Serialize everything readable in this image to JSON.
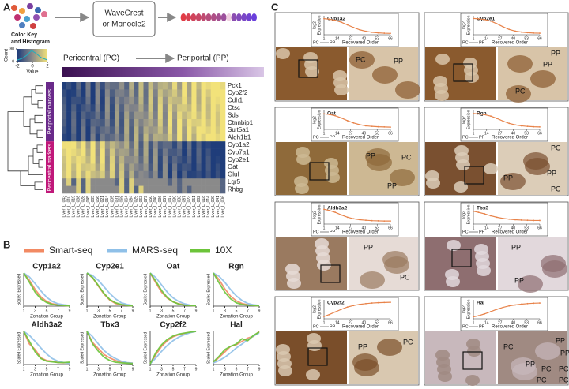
{
  "panel_a": {
    "letter": "A",
    "method": [
      "WaveCrest",
      "or Monocle2"
    ],
    "color_key": {
      "title": [
        "Color Key",
        "and Histogram"
      ],
      "count_label": "Count",
      "count_ticks": [
        0,
        80
      ],
      "value_label": "Value",
      "value_ticks": [
        -2,
        0,
        2
      ]
    },
    "axis_start": "Pericentral (PC)",
    "axis_end": "Periportal (PP)",
    "groups": [
      "Periportal markers",
      "Pericentral markers"
    ],
    "genes": [
      "Pck1",
      "Cyp2f2",
      "Cdh1",
      "Ctsc",
      "Sds",
      "Ctnnbip1",
      "Sult5a1",
      "Aldh1b1",
      "Cyp1a2",
      "Cyp7a1",
      "Cyp2e1",
      "Oat",
      "Glul",
      "Lgr5",
      "Rhbg"
    ],
    "cells": [
      "Liver_L_043",
      "Liver_L_010",
      "Liver_L_019",
      "Liver_L_038",
      "Liver_L_028",
      "Liver_L_045",
      "Liver_L_065",
      "Liver_L_056",
      "Liver_L_021",
      "Liver_L_054",
      "Liver_L_005",
      "Liver_L_031",
      "Liver_L_068",
      "Liver_L_064",
      "Liver_L_084",
      "Liver_L_025",
      "Liver_L_063",
      "Liver_L_079",
      "Liver_L_050",
      "Liver_L_040",
      "Liver_L_036",
      "Liver_L_057",
      "Liver_L_047",
      "Liver_L_030",
      "Liver_L_033",
      "Liver_L_087",
      "Liver_L_023",
      "Liver_L_051",
      "Liver_L_062",
      "Liver_L_018",
      "Liver_L_014",
      "Liver_L_009",
      "Liver_L_041",
      "Liver_L_006"
    ]
  },
  "panel_b": {
    "letter": "B",
    "x_label": "Zonation Group",
    "y_label": "Scaled Expressed",
    "legend": [
      {
        "name": "Smart-seq",
        "color": "#f28a63"
      },
      {
        "name": "MARS-seq",
        "color": "#8fc0e8"
      },
      {
        "name": "10X",
        "color": "#6cc43a"
      }
    ],
    "x": [
      1,
      2,
      3,
      4,
      5,
      6,
      7,
      8,
      9
    ],
    "xticks": [
      1,
      3,
      5,
      7,
      9
    ],
    "xlim": [
      1,
      9
    ],
    "ylim": [
      0,
      1
    ],
    "charts": [
      {
        "type": "line",
        "title": "Cyp1a2",
        "series": [
          [
            1,
            0.78,
            0.5,
            0.28,
            0.14,
            0.07,
            0.04,
            0.02,
            0.01
          ],
          [
            1,
            0.88,
            0.68,
            0.46,
            0.27,
            0.14,
            0.07,
            0.04,
            0.02
          ],
          [
            1,
            0.72,
            0.42,
            0.22,
            0.11,
            0.05,
            0.03,
            0.02,
            0.01
          ]
        ]
      },
      {
        "type": "line",
        "title": "Cyp2e1",
        "series": [
          [
            1,
            0.85,
            0.6,
            0.36,
            0.18,
            0.08,
            0.04,
            0.02,
            0.01
          ],
          [
            1,
            0.92,
            0.78,
            0.58,
            0.38,
            0.22,
            0.1,
            0.05,
            0.02
          ],
          [
            1,
            0.86,
            0.62,
            0.38,
            0.2,
            0.1,
            0.05,
            0.02,
            0.01
          ]
        ]
      },
      {
        "type": "line",
        "title": "Oat",
        "series": [
          [
            1,
            0.7,
            0.42,
            0.24,
            0.13,
            0.07,
            0.04,
            0.02,
            0.01
          ],
          [
            1,
            0.86,
            0.64,
            0.42,
            0.25,
            0.14,
            0.07,
            0.03,
            0.02
          ],
          [
            1,
            0.75,
            0.47,
            0.26,
            0.13,
            0.06,
            0.03,
            0.02,
            0.01
          ]
        ]
      },
      {
        "type": "line",
        "title": "Rgn",
        "series": [
          [
            1,
            0.8,
            0.52,
            0.3,
            0.16,
            0.08,
            0.04,
            0.02,
            0.01
          ],
          [
            1,
            0.9,
            0.72,
            0.5,
            0.31,
            0.17,
            0.08,
            0.04,
            0.02
          ],
          [
            1,
            0.7,
            0.42,
            0.22,
            0.1,
            0.05,
            0.03,
            0.02,
            0.01
          ]
        ]
      },
      {
        "type": "line",
        "title": "Aldh3a2",
        "series": [
          [
            1,
            0.62,
            0.45,
            0.2,
            0.12,
            0.1,
            0.06,
            0.05,
            0.06
          ],
          [
            1,
            0.88,
            0.7,
            0.5,
            0.32,
            0.18,
            0.1,
            0.06,
            0.04
          ],
          [
            1,
            0.7,
            0.38,
            0.18,
            0.1,
            0.08,
            0.06,
            0.06,
            0.07
          ]
        ]
      },
      {
        "type": "line",
        "title": "Tbx3",
        "series": [
          [
            1,
            0.66,
            0.48,
            0.3,
            0.2,
            0.12,
            0.07,
            0.05,
            0.04
          ],
          [
            1,
            0.84,
            0.62,
            0.42,
            0.28,
            0.18,
            0.1,
            0.06,
            0.04
          ],
          [
            1,
            0.62,
            0.4,
            0.22,
            0.12,
            0.07,
            0.05,
            0.04,
            0.03
          ]
        ]
      },
      {
        "type": "line",
        "title": "Cyp2f2",
        "series": [
          [
            0.02,
            0.3,
            0.55,
            0.72,
            0.84,
            0.9,
            0.94,
            0.97,
            1
          ],
          [
            0.02,
            0.2,
            0.4,
            0.58,
            0.72,
            0.83,
            0.9,
            0.96,
            1
          ],
          [
            0.02,
            0.36,
            0.6,
            0.76,
            0.86,
            0.92,
            0.95,
            0.98,
            1
          ]
        ]
      },
      {
        "type": "line",
        "title": "Hal",
        "series": [
          [
            0.05,
            0.22,
            0.38,
            0.55,
            0.6,
            0.7,
            0.8,
            0.85,
            1
          ],
          [
            0.05,
            0.12,
            0.22,
            0.35,
            0.5,
            0.62,
            0.75,
            0.86,
            0.95
          ],
          [
            0.08,
            0.25,
            0.45,
            0.55,
            0.62,
            0.78,
            0.72,
            0.88,
            0.98
          ]
        ]
      }
    ]
  },
  "panel_c": {
    "letter": "C",
    "y_label": [
      "log2",
      "Expression"
    ],
    "x_label": "Recovered Order",
    "start": "PC",
    "end": "PP",
    "x": [
      1,
      6,
      12,
      18,
      24,
      30,
      36,
      42,
      48,
      54,
      60,
      66
    ],
    "xticks": [
      1,
      14,
      27,
      40,
      53,
      66
    ],
    "xlim": [
      1,
      66
    ],
    "ylim": [
      0,
      10
    ],
    "color": "#e8834a",
    "panels": [
      {
        "gene": "Cyp1a2",
        "values": [
          8.5,
          8.2,
          7.6,
          6.6,
          5.2,
          3.8,
          2.6,
          1.8,
          1.3,
          1,
          0.8,
          0.7
        ],
        "image_labels": [
          "PC",
          "PP"
        ]
      },
      {
        "gene": "Cyp2e1",
        "values": [
          8.6,
          8.4,
          8,
          7.2,
          5.8,
          4.2,
          2.8,
          1.9,
          1.4,
          1.1,
          0.9,
          0.8
        ],
        "image_labels": [
          "PP",
          "PP",
          "PC"
        ]
      },
      {
        "gene": "Oat",
        "values": [
          8.2,
          7.9,
          7.2,
          6,
          4.6,
          3.4,
          2.5,
          1.9,
          1.6,
          1.4,
          1.3,
          1.2
        ],
        "image_labels": [
          "PC",
          "PP",
          "PP"
        ]
      },
      {
        "gene": "Rgn",
        "values": [
          8.4,
          8.2,
          7.8,
          7,
          5.8,
          4.4,
          3.2,
          2.4,
          1.9,
          1.6,
          1.4,
          1.3
        ],
        "image_labels": [
          "PC",
          "PP",
          "PP",
          "PC"
        ]
      },
      {
        "gene": "Aldh3a2",
        "values": [
          7.8,
          7.2,
          6.2,
          4.8,
          3.6,
          2.8,
          2.3,
          2,
          1.8,
          1.7,
          1.6,
          1.6
        ],
        "image_labels": [
          "PP",
          "PC"
        ]
      },
      {
        "gene": "Tbx3",
        "values": [
          6.8,
          6.2,
          5.4,
          4.4,
          3.6,
          3,
          2.6,
          2.3,
          2.1,
          2,
          1.9,
          1.9
        ],
        "image_labels": [
          "PP",
          "PP"
        ]
      },
      {
        "gene": "Cyp2f2",
        "values": [
          1.2,
          2.2,
          3.6,
          5,
          6.2,
          7,
          7.6,
          8,
          8.3,
          8.5,
          8.6,
          8.7
        ],
        "image_labels": [
          "PP",
          "PC"
        ]
      },
      {
        "gene": "Hal",
        "values": [
          1,
          1.6,
          2.6,
          3.8,
          5,
          6,
          6.8,
          7.3,
          7.7,
          8,
          8.2,
          8.3
        ],
        "image_labels": [
          "PC",
          "PP",
          "PC",
          "PC",
          "PP",
          "PP",
          "PC",
          "PC"
        ]
      }
    ]
  }
}
